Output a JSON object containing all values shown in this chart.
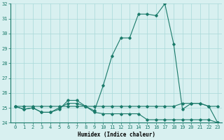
{
  "x": [
    0,
    1,
    2,
    3,
    4,
    5,
    6,
    7,
    8,
    9,
    10,
    11,
    12,
    13,
    14,
    15,
    16,
    17,
    18,
    19,
    20,
    21,
    22,
    23
  ],
  "line1": [
    25.1,
    24.9,
    25.0,
    24.7,
    24.7,
    24.9,
    25.5,
    25.5,
    25.1,
    24.8,
    26.5,
    28.5,
    29.7,
    29.7,
    31.3,
    31.3,
    31.2,
    32.0,
    29.3,
    24.9,
    25.3,
    25.3,
    25.1,
    24.0
  ],
  "line2": [
    25.1,
    24.9,
    25.0,
    24.7,
    24.7,
    25.0,
    25.3,
    25.3,
    25.1,
    24.7,
    24.6,
    24.6,
    24.6,
    24.6,
    24.6,
    24.2,
    24.2,
    24.2,
    24.2,
    24.2,
    24.2,
    24.2,
    24.2,
    24.0
  ],
  "line3": [
    25.1,
    25.1,
    25.1,
    25.1,
    25.1,
    25.1,
    25.1,
    25.1,
    25.1,
    25.1,
    25.1,
    25.1,
    25.1,
    25.1,
    25.1,
    25.1,
    25.1,
    25.1,
    25.1,
    25.3,
    25.3,
    25.3,
    25.1,
    25.1
  ],
  "line_color": "#1a7a6a",
  "bg_color": "#d8f0f0",
  "grid_color": "#a8d8d8",
  "xlabel": "Humidex (Indice chaleur)",
  "ylim": [
    24,
    32
  ],
  "xlim_min": -0.5,
  "xlim_max": 23.5,
  "yticks": [
    24,
    25,
    26,
    27,
    28,
    29,
    30,
    31,
    32
  ],
  "xticks": [
    0,
    1,
    2,
    3,
    4,
    5,
    6,
    7,
    8,
    9,
    10,
    11,
    12,
    13,
    14,
    15,
    16,
    17,
    18,
    19,
    20,
    21,
    22,
    23
  ],
  "tick_fontsize": 5.0,
  "xlabel_fontsize": 5.5,
  "linewidth": 0.8,
  "markersize": 1.8
}
